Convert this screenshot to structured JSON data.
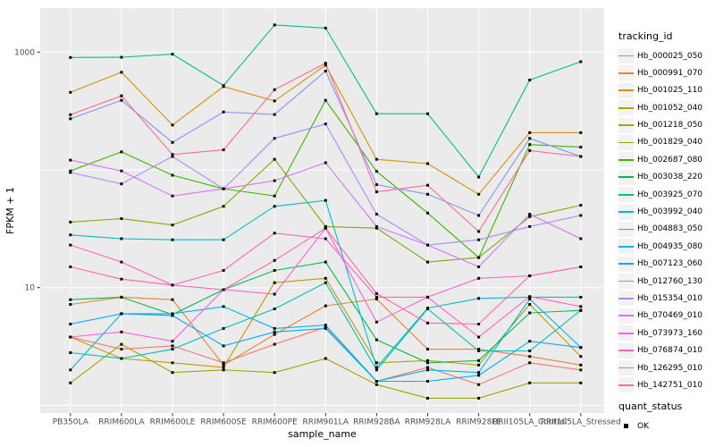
{
  "figure": {
    "axes": {
      "x_title": "sample_name",
      "y_title": "FPKM + 1"
    },
    "legend": {
      "tracking_title": "tracking_id",
      "quant_title": "quant_status",
      "quant_value": "OK"
    },
    "colors": {
      "panel_bg": "#EBEBEB",
      "grid": "#FFFFFF",
      "tick_text": "#4D4D4D",
      "axis_title_text": "#000000",
      "legend_key_bg": "#F2F2F2",
      "point": "#000000"
    }
  },
  "chart_data": {
    "type": "line",
    "title": "",
    "xlabel": "sample_name",
    "ylabel": "FPKM + 1",
    "y_scale": "log10",
    "ylim": [
      1,
      2000
    ],
    "y_tick_labels": [
      "1000",
      "10"
    ],
    "y_tick_values": [
      1000,
      10
    ],
    "grid_line_values": [
      1,
      10,
      100,
      1000
    ],
    "grid": "on",
    "legend_position": "right",
    "point_marker": "small-black-square",
    "categories": [
      "PB350LA",
      "RRIM600LA",
      "RRIM600LE",
      "RRIM600SE",
      "RRIM600PE",
      "RRIM901LA",
      "RRIM928BA",
      "RRIM928LA",
      "RRIM928LE",
      "RRII105LA_Control",
      "RRII105LA_Stressed"
    ],
    "series": [
      {
        "name": "Hb_000025_050",
        "color": "#F8766D",
        "values": [
          3.8,
          3.0,
          3.2,
          2.3,
          3.3,
          4.6,
          1.6,
          2.1,
          1.5,
          2.3,
          2.0
        ]
      },
      {
        "name": "Hb_000991_070",
        "color": "#EA8331",
        "values": [
          7.2,
          8.3,
          7.9,
          2.2,
          4.0,
          7.0,
          8.0,
          3.0,
          3.0,
          2.6,
          2.2
        ]
      },
      {
        "name": "Hb_001025_110",
        "color": "#D89000",
        "values": [
          455,
          675,
          240,
          510,
          385,
          775,
          123,
          113,
          62,
          207,
          207
        ]
      },
      {
        "name": "Hb_001052_040",
        "color": "#C09B00",
        "values": [
          3.8,
          2.5,
          2.3,
          2.1,
          11,
          12,
          2.3,
          2.4,
          2.2,
          7.2,
          2.6
        ]
      },
      {
        "name": "Hb_001218_050",
        "color": "#A3A500",
        "values": [
          1.55,
          3.3,
          1.9,
          2.0,
          1.9,
          2.5,
          1.5,
          1.15,
          1.15,
          1.55,
          1.55
        ]
      },
      {
        "name": "Hb_001829_040",
        "color": "#7CAE00",
        "values": [
          36,
          38.5,
          34,
          49,
          123,
          33,
          32,
          16.5,
          18,
          40,
          50
        ]
      },
      {
        "name": "Hb_002687_080",
        "color": "#39B600",
        "values": [
          98,
          142,
          90,
          69,
          60,
          390,
          97,
          43,
          18,
          164,
          156
        ]
      },
      {
        "name": "Hb_003038_220",
        "color": "#00BB4E",
        "values": [
          7.9,
          8.3,
          5.9,
          9.6,
          14,
          16.5,
          3.6,
          2.3,
          2.4,
          6.1,
          6.4
        ]
      },
      {
        "name": "Hb_003925_070",
        "color": "#00C087",
        "values": [
          900,
          905,
          960,
          520,
          1700,
          1600,
          300,
          300,
          87,
          580,
          830
        ]
      },
      {
        "name": "Hb_003992_040",
        "color": "#00C0B4",
        "values": [
          2.8,
          2.5,
          3.0,
          4.5,
          6.6,
          11,
          2.0,
          6.6,
          2.9,
          2.9,
          6.4
        ]
      },
      {
        "name": "Hb_004883_050",
        "color": "#00BDD0",
        "values": [
          28,
          26,
          25.5,
          25.5,
          49,
          55,
          2.1,
          6.7,
          8.1,
          8.3,
          8.3
        ]
      },
      {
        "name": "Hb_004935_080",
        "color": "#00B5EC",
        "values": [
          2.0,
          6.0,
          6.0,
          6.9,
          4.5,
          4.8,
          1.6,
          2.0,
          1.9,
          8.0,
          3.1
        ]
      },
      {
        "name": "Hb_007123_060",
        "color": "#00A9FF",
        "values": [
          4.9,
          6.0,
          5.8,
          3.2,
          4.2,
          4.5,
          1.6,
          1.6,
          1.8,
          3.5,
          3.1
        ]
      },
      {
        "name": "Hb_012760_130",
        "color": "#7F96FF",
        "values": [
          272,
          390,
          171,
          310,
          295,
          690,
          75,
          62,
          41,
          185,
          130
        ]
      },
      {
        "name": "Hb_015354_010",
        "color": "#AC88FF",
        "values": [
          95,
          76,
          130,
          69,
          185,
          245,
          42,
          23,
          25.5,
          33,
          41
        ]
      },
      {
        "name": "Hb_070469_010",
        "color": "#DC71FA",
        "values": [
          121,
          98,
          60,
          69,
          81,
          115,
          33,
          23,
          15,
          42,
          26
        ]
      },
      {
        "name": "Hb_073973_160",
        "color": "#F763E0",
        "values": [
          3.8,
          4.2,
          3.5,
          9.6,
          8.8,
          32,
          5.1,
          8.3,
          12,
          12.6,
          15
        ]
      },
      {
        "name": "Hb_076874_010",
        "color": "#FF61C9",
        "values": [
          23,
          16.5,
          10.5,
          14,
          29,
          26,
          8.3,
          8.3,
          3.8,
          8.4,
          6.9
        ]
      },
      {
        "name": "Hb_126295_010",
        "color": "#FF65A8",
        "values": [
          15,
          11.8,
          10.5,
          9.6,
          17,
          32,
          8.9,
          5.0,
          4.9,
          12.6,
          15
        ]
      },
      {
        "name": "Hb_142751_010",
        "color": "#FF6C91",
        "values": [
          294,
          425,
          135,
          148,
          480,
          805,
          65,
          74,
          30,
          146,
          130
        ]
      }
    ],
    "quant_status": {
      "label": "quant_status",
      "value": "OK",
      "marker": "filled-square",
      "color": "#000000"
    }
  }
}
